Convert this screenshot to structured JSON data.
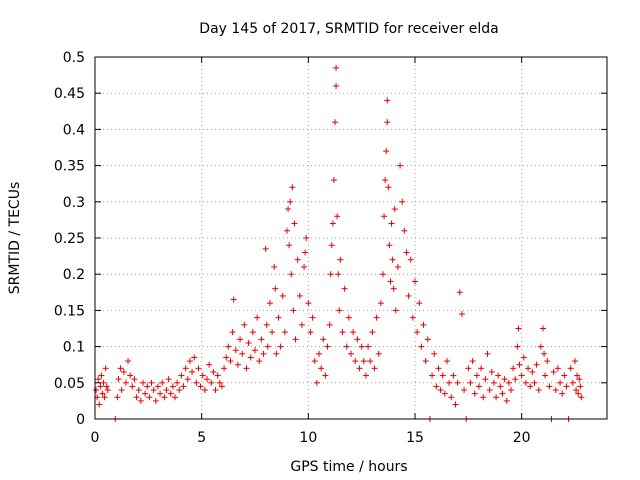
{
  "chart_data": {
    "type": "scatter",
    "title": "Day 145 of 2017, SRMTID for receiver elda",
    "xlabel": "GPS time / hours",
    "ylabel": "SRMTID / TECUs",
    "xlim": [
      0,
      24
    ],
    "ylim": [
      0,
      0.5
    ],
    "x_ticks": [
      0,
      5,
      10,
      15,
      20
    ],
    "x_tick_labels": [
      "0",
      "5",
      "10",
      "15",
      "20"
    ],
    "y_ticks": [
      0,
      0.05,
      0.1,
      0.15,
      0.2,
      0.25,
      0.3,
      0.35,
      0.4,
      0.45,
      0.5
    ],
    "y_tick_labels": [
      "0",
      "0.05",
      "0.1",
      "0.15",
      "0.2",
      "0.25",
      "0.3",
      "0.35",
      "0.4",
      "0.45",
      "0.5"
    ],
    "grid": true,
    "marker": "+",
    "color": "#e80000",
    "series": [
      {
        "name": "SRMTID",
        "points": [
          [
            0.05,
            0.04
          ],
          [
            0.1,
            0.03
          ],
          [
            0.15,
            0.055
          ],
          [
            0.2,
            0.02
          ],
          [
            0.25,
            0.045
          ],
          [
            0.3,
            0.06
          ],
          [
            0.35,
            0.035
          ],
          [
            0.4,
            0.05
          ],
          [
            0.45,
            0.03
          ],
          [
            0.5,
            0.07
          ],
          [
            0.55,
            0.045
          ],
          [
            0.6,
            0.04
          ],
          [
            0.95,
            0.0
          ],
          [
            1.05,
            0.03
          ],
          [
            1.1,
            0.055
          ],
          [
            1.2,
            0.07
          ],
          [
            1.25,
            0.04
          ],
          [
            1.35,
            0.065
          ],
          [
            1.45,
            0.05
          ],
          [
            1.55,
            0.08
          ],
          [
            1.65,
            0.06
          ],
          [
            1.75,
            0.045
          ],
          [
            1.85,
            0.055
          ],
          [
            1.95,
            0.03
          ],
          [
            2.05,
            0.04
          ],
          [
            2.15,
            0.025
          ],
          [
            2.25,
            0.05
          ],
          [
            2.35,
            0.035
          ],
          [
            2.45,
            0.045
          ],
          [
            2.55,
            0.03
          ],
          [
            2.65,
            0.05
          ],
          [
            2.75,
            0.04
          ],
          [
            2.85,
            0.025
          ],
          [
            2.95,
            0.045
          ],
          [
            3.05,
            0.035
          ],
          [
            3.15,
            0.05
          ],
          [
            3.25,
            0.03
          ],
          [
            3.35,
            0.04
          ],
          [
            3.45,
            0.055
          ],
          [
            3.55,
            0.035
          ],
          [
            3.65,
            0.045
          ],
          [
            3.75,
            0.03
          ],
          [
            3.85,
            0.05
          ],
          [
            3.95,
            0.04
          ],
          [
            4.05,
            0.06
          ],
          [
            4.15,
            0.045
          ],
          [
            4.25,
            0.07
          ],
          [
            4.35,
            0.055
          ],
          [
            4.45,
            0.08
          ],
          [
            4.55,
            0.065
          ],
          [
            4.65,
            0.085
          ],
          [
            4.75,
            0.05
          ],
          [
            4.85,
            0.07
          ],
          [
            4.95,
            0.045
          ],
          [
            5.05,
            0.06
          ],
          [
            5.15,
            0.04
          ],
          [
            5.25,
            0.055
          ],
          [
            5.35,
            0.075
          ],
          [
            5.45,
            0.05
          ],
          [
            5.55,
            0.065
          ],
          [
            5.65,
            0.04
          ],
          [
            5.75,
            0.06
          ],
          [
            5.85,
            0.05
          ],
          [
            5.95,
            0.045
          ],
          [
            6.05,
            0.07
          ],
          [
            6.15,
            0.085
          ],
          [
            6.25,
            0.1
          ],
          [
            6.35,
            0.08
          ],
          [
            6.45,
            0.12
          ],
          [
            6.5,
            0.165
          ],
          [
            6.6,
            0.095
          ],
          [
            6.7,
            0.075
          ],
          [
            6.8,
            0.11
          ],
          [
            6.9,
            0.09
          ],
          [
            7.0,
            0.13
          ],
          [
            7.1,
            0.07
          ],
          [
            7.2,
            0.105
          ],
          [
            7.3,
            0.085
          ],
          [
            7.4,
            0.12
          ],
          [
            7.5,
            0.095
          ],
          [
            7.6,
            0.14
          ],
          [
            7.7,
            0.08
          ],
          [
            7.8,
            0.11
          ],
          [
            7.9,
            0.09
          ],
          [
            8.0,
            0.235
          ],
          [
            8.05,
            0.13
          ],
          [
            8.1,
            0.1
          ],
          [
            8.2,
            0.16
          ],
          [
            8.3,
            0.12
          ],
          [
            8.4,
            0.21
          ],
          [
            8.45,
            0.18
          ],
          [
            8.5,
            0.09
          ],
          [
            8.6,
            0.14
          ],
          [
            8.7,
            0.1
          ],
          [
            8.8,
            0.17
          ],
          [
            8.9,
            0.12
          ],
          [
            9.0,
            0.26
          ],
          [
            9.05,
            0.29
          ],
          [
            9.1,
            0.24
          ],
          [
            9.15,
            0.3
          ],
          [
            9.2,
            0.2
          ],
          [
            9.25,
            0.32
          ],
          [
            9.3,
            0.15
          ],
          [
            9.35,
            0.27
          ],
          [
            9.4,
            0.11
          ],
          [
            9.5,
            0.22
          ],
          [
            9.6,
            0.17
          ],
          [
            9.7,
            0.13
          ],
          [
            9.8,
            0.21
          ],
          [
            9.85,
            0.23
          ],
          [
            9.9,
            0.25
          ],
          [
            10.0,
            0.16
          ],
          [
            10.1,
            0.12
          ],
          [
            10.2,
            0.14
          ],
          [
            10.3,
            0.08
          ],
          [
            10.4,
            0.05
          ],
          [
            10.5,
            0.09
          ],
          [
            10.6,
            0.07
          ],
          [
            10.7,
            0.11
          ],
          [
            10.8,
            0.06
          ],
          [
            10.9,
            0.1
          ],
          [
            11.0,
            0.13
          ],
          [
            11.05,
            0.2
          ],
          [
            11.1,
            0.24
          ],
          [
            11.15,
            0.27
          ],
          [
            11.2,
            0.33
          ],
          [
            11.25,
            0.41
          ],
          [
            11.3,
            0.46
          ],
          [
            11.3,
            0.485
          ],
          [
            11.35,
            0.28
          ],
          [
            11.4,
            0.2
          ],
          [
            11.45,
            0.15
          ],
          [
            11.5,
            0.22
          ],
          [
            11.6,
            0.12
          ],
          [
            11.7,
            0.18
          ],
          [
            11.8,
            0.1
          ],
          [
            11.9,
            0.14
          ],
          [
            12.0,
            0.09
          ],
          [
            12.1,
            0.12
          ],
          [
            12.2,
            0.08
          ],
          [
            12.3,
            0.11
          ],
          [
            12.4,
            0.07
          ],
          [
            12.5,
            0.1
          ],
          [
            12.6,
            0.08
          ],
          [
            12.7,
            0.06
          ],
          [
            12.8,
            0.1
          ],
          [
            12.9,
            0.08
          ],
          [
            13.0,
            0.12
          ],
          [
            13.1,
            0.07
          ],
          [
            13.2,
            0.14
          ],
          [
            13.3,
            0.09
          ],
          [
            13.4,
            0.16
          ],
          [
            13.5,
            0.2
          ],
          [
            13.55,
            0.28
          ],
          [
            13.6,
            0.33
          ],
          [
            13.65,
            0.37
          ],
          [
            13.7,
            0.41
          ],
          [
            13.7,
            0.44
          ],
          [
            13.75,
            0.32
          ],
          [
            13.8,
            0.24
          ],
          [
            13.85,
            0.19
          ],
          [
            13.9,
            0.27
          ],
          [
            13.95,
            0.22
          ],
          [
            14.0,
            0.18
          ],
          [
            14.05,
            0.29
          ],
          [
            14.1,
            0.15
          ],
          [
            14.2,
            0.21
          ],
          [
            14.3,
            0.35
          ],
          [
            14.4,
            0.3
          ],
          [
            14.5,
            0.26
          ],
          [
            14.6,
            0.23
          ],
          [
            14.7,
            0.17
          ],
          [
            14.8,
            0.22
          ],
          [
            14.9,
            0.14
          ],
          [
            15.0,
            0.19
          ],
          [
            15.1,
            0.12
          ],
          [
            15.2,
            0.16
          ],
          [
            15.3,
            0.1
          ],
          [
            15.4,
            0.13
          ],
          [
            15.5,
            0.08
          ],
          [
            15.6,
            0.11
          ],
          [
            15.7,
            0.0
          ],
          [
            15.8,
            0.06
          ],
          [
            15.9,
            0.09
          ],
          [
            16.0,
            0.045
          ],
          [
            16.1,
            0.07
          ],
          [
            16.2,
            0.04
          ],
          [
            16.3,
            0.06
          ],
          [
            16.4,
            0.035
          ],
          [
            16.5,
            0.08
          ],
          [
            16.6,
            0.05
          ],
          [
            16.7,
            0.03
          ],
          [
            16.8,
            0.06
          ],
          [
            16.9,
            0.02
          ],
          [
            17.0,
            0.05
          ],
          [
            17.1,
            0.175
          ],
          [
            17.2,
            0.145
          ],
          [
            17.3,
            0.04
          ],
          [
            17.4,
            0.0
          ],
          [
            17.5,
            0.07
          ],
          [
            17.6,
            0.05
          ],
          [
            17.7,
            0.08
          ],
          [
            17.8,
            0.035
          ],
          [
            17.9,
            0.06
          ],
          [
            18.0,
            0.045
          ],
          [
            18.1,
            0.07
          ],
          [
            18.2,
            0.03
          ],
          [
            18.3,
            0.055
          ],
          [
            18.4,
            0.09
          ],
          [
            18.5,
            0.04
          ],
          [
            18.6,
            0.065
          ],
          [
            18.7,
            0.05
          ],
          [
            18.8,
            0.03
          ],
          [
            18.9,
            0.06
          ],
          [
            19.0,
            0.045
          ],
          [
            19.1,
            0.035
          ],
          [
            19.2,
            0.055
          ],
          [
            19.3,
            0.025
          ],
          [
            19.4,
            0.05
          ],
          [
            19.5,
            0.04
          ],
          [
            19.6,
            0.07
          ],
          [
            19.7,
            0.055
          ],
          [
            19.8,
            0.1
          ],
          [
            19.85,
            0.125
          ],
          [
            19.9,
            0.075
          ],
          [
            20.0,
            0.06
          ],
          [
            20.1,
            0.085
          ],
          [
            20.2,
            0.05
          ],
          [
            20.3,
            0.07
          ],
          [
            20.4,
            0.045
          ],
          [
            20.5,
            0.065
          ],
          [
            20.6,
            0.05
          ],
          [
            20.7,
            0.075
          ],
          [
            20.8,
            0.04
          ],
          [
            20.9,
            0.1
          ],
          [
            21.0,
            0.125
          ],
          [
            21.05,
            0.09
          ],
          [
            21.1,
            0.06
          ],
          [
            21.2,
            0.08
          ],
          [
            21.3,
            0.045
          ],
          [
            21.4,
            0.0
          ],
          [
            21.5,
            0.065
          ],
          [
            21.6,
            0.04
          ],
          [
            21.7,
            0.07
          ],
          [
            21.8,
            0.05
          ],
          [
            21.9,
            0.035
          ],
          [
            22.0,
            0.06
          ],
          [
            22.1,
            0.045
          ],
          [
            22.2,
            0.0
          ],
          [
            22.3,
            0.07
          ],
          [
            22.4,
            0.05
          ],
          [
            22.5,
            0.08
          ],
          [
            22.55,
            0.04
          ],
          [
            22.6,
            0.06
          ],
          [
            22.65,
            0.035
          ],
          [
            22.7,
            0.055
          ],
          [
            22.75,
            0.045
          ],
          [
            22.8,
            0.03
          ]
        ]
      }
    ]
  }
}
